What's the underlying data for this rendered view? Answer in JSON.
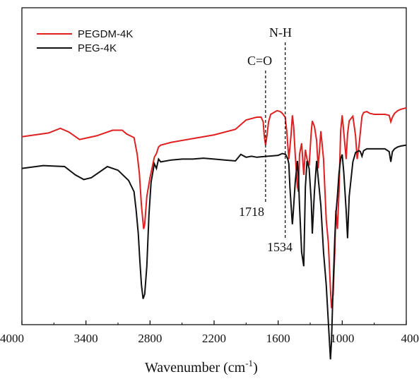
{
  "chart_data": {
    "type": "line",
    "title": "",
    "xlabel": "Wavenumber (cm",
    "xlabel_sup": "-1",
    "xlabel_close": ")",
    "ylabel": "",
    "xlim": [
      4000,
      400
    ],
    "x_reversed": true,
    "x_ticks": [
      4000,
      3400,
      2800,
      2200,
      1600,
      1000,
      400
    ],
    "x_tick_labels": [
      "4000",
      "3400",
      "2800",
      "2200",
      "1600",
      "1000",
      "400"
    ],
    "y_ticks_shown": false,
    "grid": false,
    "legend_position": "top-left",
    "series": [
      {
        "name": "PEGDM-4K",
        "color": "#e02020",
        "x": [
          4000,
          3750,
          3640,
          3560,
          3460,
          3300,
          3150,
          3060,
          3020,
          2950,
          2920,
          2900,
          2880,
          2860,
          2850,
          2830,
          2800,
          2760,
          2740,
          2720,
          2700,
          2600,
          2400,
          2200,
          2000,
          1900,
          1800,
          1760,
          1740,
          1730,
          1718,
          1705,
          1690,
          1670,
          1640,
          1610,
          1580,
          1560,
          1534,
          1520,
          1500,
          1480,
          1467,
          1455,
          1440,
          1420,
          1410,
          1400,
          1380,
          1360,
          1345,
          1330,
          1310,
          1290,
          1280,
          1260,
          1240,
          1225,
          1200,
          1175,
          1150,
          1130,
          1110,
          1100,
          1085,
          1070,
          1060,
          1045,
          1030,
          1015,
          1000,
          985,
          963,
          950,
          935,
          900,
          875,
          860,
          842,
          830,
          815,
          800,
          770,
          740,
          700,
          600,
          560,
          545,
          530,
          510,
          480,
          450,
          400
        ],
        "y": [
          2.9,
          3.3,
          3.8,
          3.4,
          2.6,
          3.0,
          3.6,
          3.6,
          3.2,
          2.8,
          1.0,
          -1.0,
          -4.5,
          -7.0,
          -6.5,
          -3.5,
          -1.5,
          0.7,
          1.1,
          1.8,
          2.0,
          2.3,
          2.7,
          3.1,
          3.7,
          4.7,
          5.0,
          5.0,
          4.5,
          3.0,
          2.0,
          3.0,
          4.5,
          5.3,
          5.5,
          5.7,
          5.6,
          5.4,
          5.0,
          3.5,
          0.5,
          3.0,
          5.2,
          4.0,
          1.0,
          -2.5,
          -3.0,
          1.0,
          2.2,
          -1.2,
          1.5,
          0.5,
          -0.2,
          3.4,
          4.6,
          4.0,
          2.5,
          -0.5,
          3.5,
          0.5,
          -6.0,
          -8.5,
          -13.5,
          -15.5,
          -14.0,
          -9.5,
          -5.0,
          -7.0,
          -3.0,
          3.5,
          5.2,
          3.3,
          0.5,
          3.2,
          4.6,
          5.1,
          3.0,
          0.5,
          2.0,
          3.4,
          5.1,
          5.5,
          5.6,
          5.4,
          5.3,
          5.3,
          5.2,
          4.5,
          5.0,
          5.4,
          5.7,
          5.85,
          6.0
        ]
      },
      {
        "name": "PEG-4K",
        "color": "#111111",
        "x": [
          4000,
          3800,
          3600,
          3500,
          3420,
          3350,
          3200,
          3100,
          3000,
          2950,
          2930,
          2910,
          2895,
          2880,
          2865,
          2850,
          2830,
          2810,
          2790,
          2760,
          2740,
          2720,
          2700,
          2600,
          2500,
          2400,
          2300,
          2200,
          2100,
          2000,
          1950,
          1900,
          1850,
          1800,
          1700,
          1600,
          1560,
          1530,
          1510,
          1500,
          1490,
          1470,
          1467,
          1460,
          1440,
          1420,
          1410,
          1400,
          1380,
          1360,
          1345,
          1330,
          1310,
          1290,
          1280,
          1260,
          1240,
          1225,
          1200,
          1175,
          1150,
          1130,
          1110,
          1100,
          1085,
          1070,
          1060,
          1045,
          1030,
          1015,
          1000,
          985,
          963,
          950,
          935,
          900,
          875,
          860,
          842,
          830,
          815,
          800,
          770,
          740,
          700,
          600,
          560,
          545,
          530,
          510,
          480,
          450,
          400
        ],
        "y": [
          -0.5,
          -0.2,
          -0.3,
          -1.2,
          -1.7,
          -1.5,
          -0.3,
          -0.7,
          -1.8,
          -3.0,
          -5.0,
          -7.5,
          -10.5,
          -13.0,
          -14.5,
          -14.0,
          -11.0,
          -5.5,
          -2.0,
          0.0,
          -0.5,
          0.5,
          0.2,
          0.4,
          0.5,
          0.5,
          0.6,
          0.5,
          0.4,
          0.3,
          1.0,
          0.7,
          0.8,
          0.7,
          0.8,
          0.9,
          1.1,
          1.0,
          0.5,
          0.0,
          -2.5,
          -6.0,
          -6.5,
          -5.5,
          -2.0,
          0.3,
          -1.5,
          -4.5,
          -9.5,
          -11.0,
          -2.5,
          0.3,
          -0.5,
          -4.0,
          -7.5,
          -3.0,
          0.3,
          -1.5,
          -4.5,
          -9.5,
          -13.0,
          -17.0,
          -21.0,
          -19.0,
          -13.0,
          -8.0,
          -5.5,
          -3.5,
          -1.0,
          0.5,
          1.0,
          -1.0,
          -5.0,
          -8.0,
          -3.5,
          0.2,
          1.2,
          1.3,
          1.4,
          1.3,
          0.8,
          1.4,
          1.6,
          1.6,
          1.6,
          1.6,
          1.3,
          0.2,
          1.3,
          1.6,
          1.8,
          1.9,
          2.0
        ]
      }
    ],
    "annotations": [
      {
        "label": "C=O",
        "position": "above",
        "x": 1718,
        "label_bottom": "1718"
      },
      {
        "label": "N-H",
        "position": "above",
        "x": 1534,
        "label_bottom": "1534"
      }
    ]
  }
}
